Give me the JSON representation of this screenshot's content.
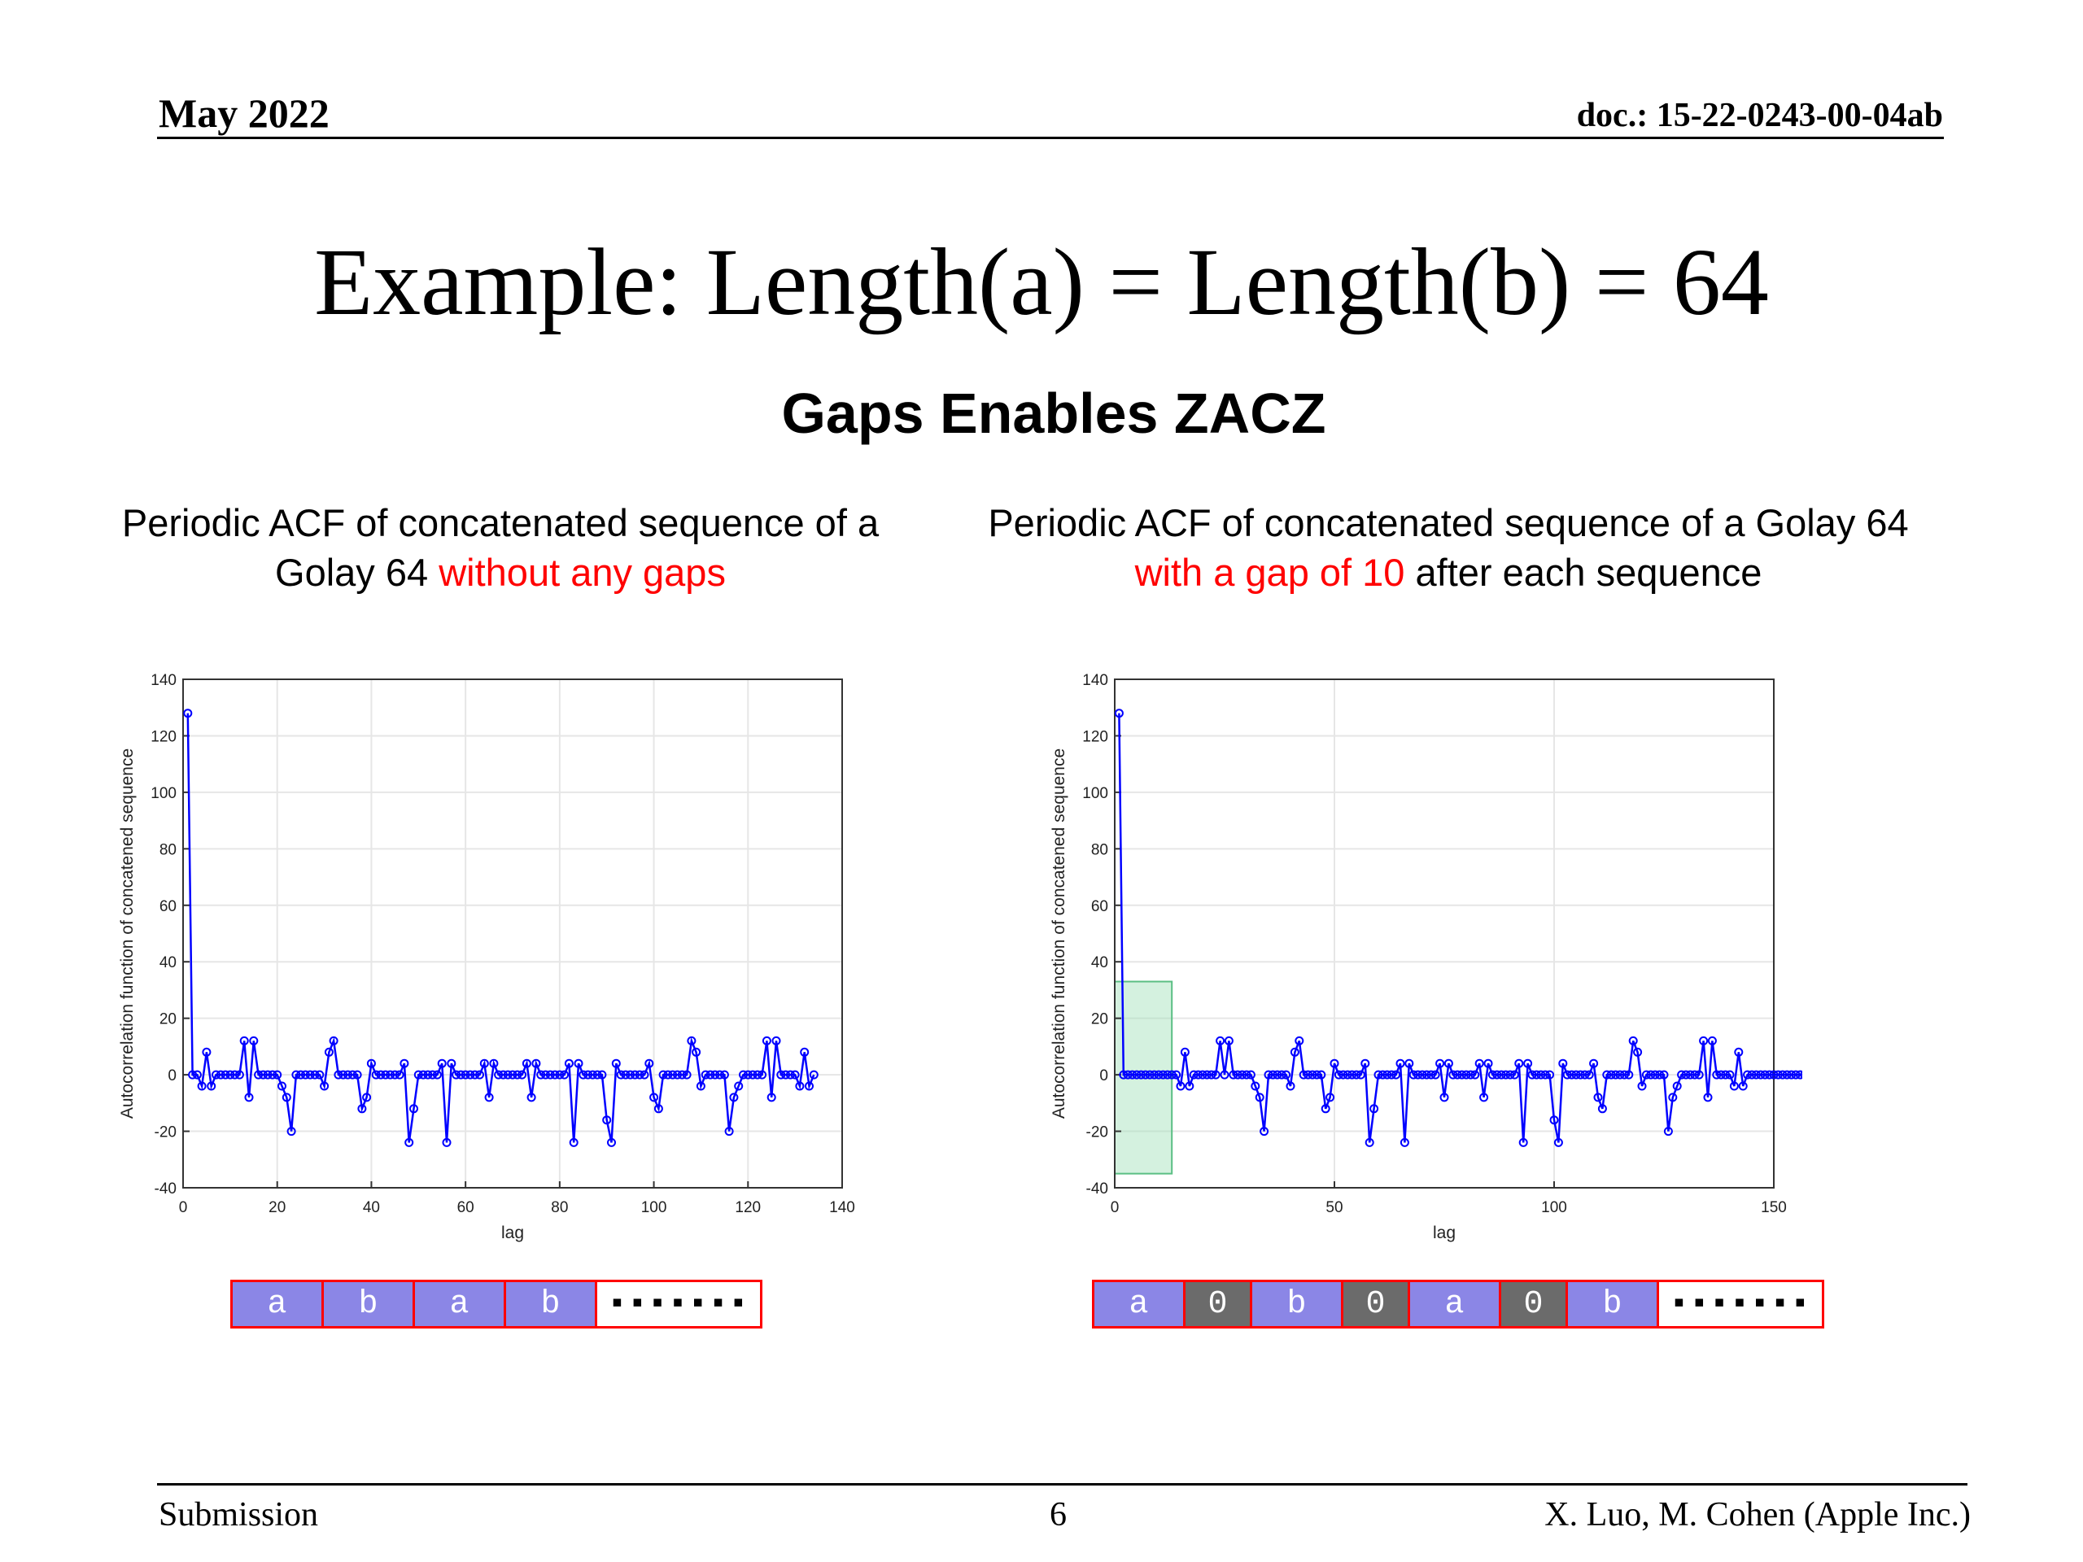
{
  "header": {
    "date": "May 2022",
    "doc": "doc.: 15-22-0243-00-04ab"
  },
  "title": "Example: Length(a) = Length(b) = 64",
  "subtitle": "Gaps Enables ZACZ",
  "captions": {
    "left": {
      "pre": "Periodic ACF of concatenated sequence of a Golay 64 ",
      "highlight": "without any gaps",
      "post": ""
    },
    "right": {
      "pre": "Periodic ACF of concatenated sequence of a Golay 64 ",
      "highlight": "with a gap of 10",
      "post": " after each sequence"
    }
  },
  "strips": {
    "left": [
      {
        "label": "a",
        "kind": "seq"
      },
      {
        "label": "b",
        "kind": "seq"
      },
      {
        "label": "a",
        "kind": "seq"
      },
      {
        "label": "b",
        "kind": "seq"
      },
      {
        "label": "▪▪▪▪▪▪▪",
        "kind": "dots"
      }
    ],
    "right": [
      {
        "label": "a",
        "kind": "seq"
      },
      {
        "label": "0",
        "kind": "zero"
      },
      {
        "label": "b",
        "kind": "seq"
      },
      {
        "label": "0",
        "kind": "zero"
      },
      {
        "label": "a",
        "kind": "seq"
      },
      {
        "label": "0",
        "kind": "zero"
      },
      {
        "label": "b",
        "kind": "seq"
      },
      {
        "label": "▪▪▪▪▪▪▪",
        "kind": "dots"
      }
    ]
  },
  "footer": {
    "left": "Submission",
    "page": "6",
    "right": "X. Luo, M. Cohen (Apple Inc.)"
  },
  "colors": {
    "series": "#0000ff",
    "highlight": "#ff0000",
    "zacz_box": "#9fe0b8"
  },
  "chart_data": [
    {
      "type": "line",
      "xlabel": "lag",
      "ylabel": "Autocorrelation function of concatened sequence",
      "xlim": [
        0,
        140
      ],
      "ylim": [
        -40,
        140
      ],
      "xticks": [
        0,
        20,
        40,
        60,
        80,
        100,
        120,
        140
      ],
      "yticks": [
        -40,
        -20,
        0,
        20,
        40,
        60,
        80,
        100,
        120,
        140
      ],
      "grid": true,
      "x_start": 1,
      "values": [
        128,
        0,
        0,
        -4,
        8,
        -4,
        0,
        0,
        0,
        0,
        0,
        0,
        12,
        -8,
        12,
        0,
        0,
        0,
        0,
        0,
        -4,
        -8,
        -20,
        0,
        0,
        0,
        0,
        0,
        0,
        -4,
        8,
        12,
        0,
        0,
        0,
        0,
        0,
        -12,
        -8,
        4,
        0,
        0,
        0,
        0,
        0,
        0,
        4,
        -24,
        -12,
        0,
        0,
        0,
        0,
        0,
        4,
        -24,
        4,
        0,
        0,
        0,
        0,
        0,
        0,
        4,
        -8,
        4,
        0,
        0,
        0,
        0,
        0,
        0,
        4,
        -8,
        4,
        0,
        0,
        0,
        0,
        0,
        0,
        4,
        -24,
        4,
        0,
        0,
        0,
        0,
        0,
        -16,
        -24,
        4,
        0,
        0,
        0,
        0,
        0,
        0,
        4,
        -8,
        -12,
        0,
        0,
        0,
        0,
        0,
        0,
        12,
        8,
        -4,
        0,
        0,
        0,
        0,
        0,
        -20,
        -8,
        -4,
        0,
        0,
        0,
        0,
        0,
        12,
        -8,
        12,
        0,
        0,
        0,
        0,
        -4,
        8,
        -4,
        0
      ]
    },
    {
      "type": "line",
      "xlabel": "lag",
      "ylabel": "Autocorrelation function of concatened sequence",
      "xlim": [
        0,
        150
      ],
      "ylim": [
        -40,
        140
      ],
      "xticks": [
        0,
        50,
        100,
        150
      ],
      "yticks": [
        -40,
        -20,
        0,
        20,
        40,
        60,
        80,
        100,
        120,
        140
      ],
      "grid": true,
      "x_start": 1,
      "values": [
        128,
        0,
        0,
        0,
        0,
        0,
        0,
        0,
        0,
        0,
        0,
        0,
        0,
        0,
        -4,
        8,
        -4,
        0,
        0,
        0,
        0,
        0,
        0,
        12,
        0,
        12,
        0,
        0,
        0,
        0,
        0,
        -4,
        -8,
        -20,
        0,
        0,
        0,
        0,
        0,
        -4,
        8,
        12,
        0,
        0,
        0,
        0,
        0,
        -12,
        -8,
        4,
        0,
        0,
        0,
        0,
        0,
        0,
        4,
        -24,
        -12,
        0,
        0,
        0,
        0,
        0,
        4,
        -24,
        4,
        0,
        0,
        0,
        0,
        0,
        0,
        4,
        -8,
        4,
        0,
        0,
        0,
        0,
        0,
        0,
        4,
        -8,
        4,
        0,
        0,
        0,
        0,
        0,
        0,
        4,
        -24,
        4,
        0,
        0,
        0,
        0,
        0,
        -16,
        -24,
        4,
        0,
        0,
        0,
        0,
        0,
        0,
        4,
        -8,
        -12,
        0,
        0,
        0,
        0,
        0,
        0,
        12,
        8,
        -4,
        0,
        0,
        0,
        0,
        0,
        -20,
        -8,
        -4,
        0,
        0,
        0,
        0,
        0,
        12,
        -8,
        12,
        0,
        0,
        0,
        0,
        -4,
        8,
        -4,
        0,
        0,
        0,
        0,
        0,
        0,
        0,
        0,
        0,
        0,
        0,
        0,
        0,
        0,
        0,
        0,
        0
      ],
      "shaded_region": {
        "x": [
          0,
          13
        ],
        "y": [
          -35,
          33
        ]
      }
    }
  ]
}
